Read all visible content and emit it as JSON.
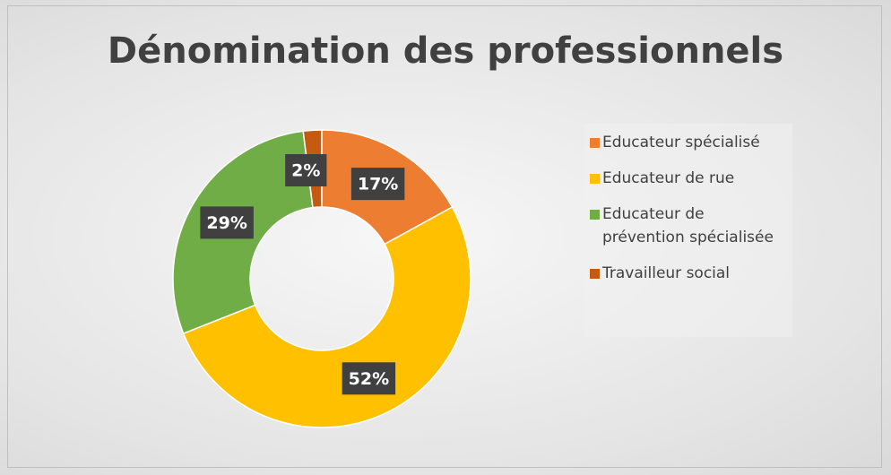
{
  "chart_data": {
    "type": "donut",
    "title": "Dénomination des professionnels",
    "categories": [
      "Educateur spécialisé",
      "Educateur de rue",
      "Educateur de prévention spécialisée",
      "Travailleur social"
    ],
    "values": [
      17,
      52,
      29,
      2
    ],
    "value_labels": [
      "17%",
      "52%",
      "29%",
      "2%"
    ],
    "colors": [
      "#ED7D31",
      "#FFC000",
      "#70AD47",
      "#C55A11"
    ]
  }
}
